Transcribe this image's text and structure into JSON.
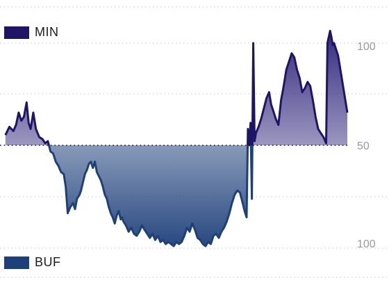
{
  "chart_data": {
    "type": "area",
    "y_scale": "two-sided (value above baseline 50 rises toward top-label 100; value below baseline 50 falls toward bottom-label 100)",
    "y_tick_labels": [
      "100",
      "50",
      "100"
    ],
    "baseline_label": "50",
    "grid": true,
    "legend_placement": "top-left and bottom-left",
    "series": [
      {
        "name": "MIN",
        "color": "#1e1565",
        "region": "above baseline"
      },
      {
        "name": "BUF",
        "color": "#1d3f7a",
        "region": "below baseline"
      }
    ],
    "x": [
      0,
      1,
      2,
      3,
      4,
      5,
      6,
      7,
      8,
      9,
      10,
      11,
      12,
      13,
      14,
      15,
      16,
      17,
      18,
      19,
      20,
      21,
      22,
      23,
      24,
      25,
      26,
      27,
      28,
      29,
      30,
      31,
      32,
      33,
      34,
      35,
      36,
      37,
      38,
      39,
      40,
      41,
      42,
      43,
      44,
      45,
      46,
      47,
      48,
      49,
      50,
      51,
      52,
      53,
      54,
      55,
      56,
      57,
      58,
      59,
      60,
      61,
      62,
      63,
      64,
      65,
      66,
      67,
      68,
      69,
      70,
      71,
      72,
      73,
      74,
      75,
      76,
      77,
      78,
      79,
      80,
      81,
      82,
      83,
      84,
      85,
      86,
      87,
      88,
      89,
      90,
      91,
      92,
      93,
      94,
      95,
      96,
      97,
      98,
      99,
      100,
      101,
      102,
      103,
      104,
      105,
      106,
      107,
      108,
      109,
      110,
      111,
      112,
      113,
      114,
      115,
      116,
      117,
      118,
      119,
      120,
      121,
      122,
      123,
      124,
      125,
      126,
      127,
      128,
      129,
      130,
      131,
      132,
      133,
      134,
      135,
      136,
      137,
      138,
      139,
      140,
      141,
      142,
      143,
      144,
      145,
      146,
      147,
      148,
      149,
      150,
      151,
      152,
      153,
      154,
      155,
      156,
      157,
      158,
      159,
      160,
      161,
      162,
      163,
      164,
      165,
      166,
      167,
      168,
      169,
      170,
      171,
      172,
      173,
      174,
      175,
      176,
      177,
      178,
      179,
      180,
      181,
      182,
      183,
      184,
      185,
      186,
      187,
      188,
      189,
      190,
      191,
      192,
      193,
      194,
      195,
      196,
      197,
      198,
      199,
      200,
      201,
      202,
      203,
      204,
      205,
      206,
      207,
      208,
      209,
      210,
      211,
      212,
      213,
      214,
      215,
      216,
      217,
      218,
      219,
      220,
      221,
      222,
      223,
      224,
      225,
      226,
      227,
      228,
      229,
      230,
      231,
      232,
      233,
      234,
      235,
      236,
      237,
      238,
      239,
      240,
      241,
      242,
      243,
      244,
      245,
      246,
      247,
      248,
      249,
      250,
      251,
      252,
      253,
      254,
      255,
      256,
      257,
      258,
      259,
      260,
      261,
      262,
      263,
      264,
      265,
      266,
      267,
      268,
      269,
      270,
      271,
      272,
      273,
      274,
      275,
      276,
      277,
      278,
      279,
      280,
      281,
      282,
      283,
      284,
      285,
      286,
      287,
      288,
      289,
      290,
      291,
      292,
      293,
      294,
      295,
      296,
      297,
      298,
      299,
      300,
      301,
      302,
      303,
      304,
      305,
      306,
      307,
      308,
      309,
      310,
      311,
      312,
      313,
      314,
      315,
      316,
      317,
      318,
      319,
      320,
      321,
      322,
      323,
      324,
      325,
      326,
      327,
      328,
      329,
      330,
      331,
      332,
      333,
      334,
      335,
      336,
      337,
      338,
      339,
      340,
      341,
      342,
      343,
      344,
      345,
      346,
      347,
      348,
      349,
      350,
      351,
      352,
      353,
      354,
      355,
      356,
      357,
      358,
      359,
      360,
      361,
      362,
      363,
      364,
      365,
      366,
      367,
      368,
      369,
      370,
      371,
      372,
      373,
      374,
      375,
      376,
      377,
      378,
      379,
      380,
      381,
      382,
      383,
      384,
      385,
      386,
      387,
      388,
      389,
      390,
      391,
      392,
      393,
      394,
      395,
      396,
      397,
      398,
      399,
      400,
      401,
      402,
      403,
      404,
      405,
      406,
      407,
      408,
      409,
      410,
      411,
      412,
      413,
      414,
      415,
      416,
      417,
      418,
      419,
      420,
      421,
      422,
      423,
      424,
      425,
      426,
      427,
      428,
      429,
      430,
      431,
      432,
      433,
      434,
      435,
      436,
      437,
      438,
      439,
      440,
      441,
      442,
      443,
      444,
      445,
      446,
      447,
      448,
      449,
      450,
      451,
      452,
      453,
      454,
      455,
      456,
      457,
      458,
      459,
      460,
      461,
      462,
      463,
      464,
      465,
      466,
      467,
      468,
      469,
      470,
      471,
      472,
      473,
      474,
      475,
      476,
      477,
      478,
      479,
      480,
      481,
      482,
      483,
      484,
      485,
      486,
      487,
      488,
      489,
      490,
      491,
      492,
      493,
      494,
      495,
      496,
      497,
      498,
      499,
      500,
      501,
      502,
      503,
      504,
      505,
      506,
      507,
      508,
      509,
      510,
      511,
      512,
      513,
      514,
      515,
      516,
      517,
      518,
      519,
      520
    ],
    "values": [
      [
        4,
        55
      ],
      [
        10,
        59
      ],
      [
        16,
        57
      ],
      [
        20,
        60
      ],
      [
        24,
        66
      ],
      [
        28,
        62
      ],
      [
        32,
        64
      ],
      [
        36,
        71
      ],
      [
        39,
        61
      ],
      [
        42,
        58
      ],
      [
        46,
        66
      ],
      [
        50,
        58
      ],
      [
        55,
        54
      ],
      [
        60,
        53
      ],
      [
        64,
        51
      ],
      [
        68,
        52
      ],
      [
        72,
        47
      ],
      [
        76,
        46
      ],
      [
        80,
        42
      ],
      [
        84,
        40
      ],
      [
        88,
        37
      ],
      [
        92,
        36
      ],
      [
        95,
        30
      ],
      [
        98,
        17
      ],
      [
        102,
        20
      ],
      [
        106,
        22
      ],
      [
        109,
        19
      ],
      [
        112,
        24
      ],
      [
        116,
        26
      ],
      [
        118,
        28
      ],
      [
        121,
        32
      ],
      [
        124,
        36
      ],
      [
        127,
        38
      ],
      [
        130,
        41
      ],
      [
        133,
        42
      ],
      [
        136,
        39
      ],
      [
        139,
        42
      ],
      [
        142,
        37
      ],
      [
        145,
        35
      ],
      [
        148,
        33
      ],
      [
        151,
        30
      ],
      [
        154,
        26
      ],
      [
        157,
        24
      ],
      [
        160,
        20
      ],
      [
        163,
        17
      ],
      [
        166,
        15
      ],
      [
        169,
        12
      ],
      [
        172,
        16
      ],
      [
        175,
        18
      ],
      [
        178,
        14
      ],
      [
        180,
        15
      ],
      [
        182,
        13
      ],
      [
        186,
        11
      ],
      [
        190,
        8
      ],
      [
        194,
        10
      ],
      [
        198,
        7
      ],
      [
        202,
        6
      ],
      [
        206,
        8
      ],
      [
        210,
        11
      ],
      [
        214,
        9
      ],
      [
        218,
        7
      ],
      [
        222,
        5
      ],
      [
        226,
        7
      ],
      [
        230,
        4
      ],
      [
        234,
        6
      ],
      [
        238,
        3
      ],
      [
        242,
        4
      ],
      [
        246,
        2
      ],
      [
        250,
        3
      ],
      [
        254,
        2
      ],
      [
        258,
        1
      ],
      [
        262,
        3
      ],
      [
        266,
        2
      ],
      [
        270,
        3
      ],
      [
        274,
        6
      ],
      [
        278,
        10
      ],
      [
        282,
        8
      ],
      [
        286,
        12
      ],
      [
        290,
        9
      ],
      [
        294,
        5
      ],
      [
        298,
        4
      ],
      [
        302,
        2
      ],
      [
        306,
        1
      ],
      [
        310,
        3
      ],
      [
        314,
        2
      ],
      [
        318,
        6
      ],
      [
        322,
        7
      ],
      [
        326,
        5
      ],
      [
        330,
        8
      ],
      [
        334,
        10
      ],
      [
        338,
        13
      ],
      [
        342,
        17
      ],
      [
        346,
        22
      ],
      [
        350,
        26
      ],
      [
        354,
        28
      ],
      [
        358,
        27
      ],
      [
        362,
        22
      ],
      [
        365,
        18
      ],
      [
        368,
        15
      ],
      [
        370,
        58
      ],
      [
        372,
        50
      ],
      [
        374,
        61
      ],
      [
        376,
        24
      ],
      [
        378,
        100
      ],
      [
        380,
        52
      ],
      [
        382,
        56
      ],
      [
        386,
        59
      ],
      [
        390,
        63
      ],
      [
        394,
        68
      ],
      [
        398,
        73
      ],
      [
        402,
        76
      ],
      [
        405,
        70
      ],
      [
        408,
        67
      ],
      [
        412,
        63
      ],
      [
        416,
        60
      ],
      [
        418,
        66
      ],
      [
        420,
        72
      ],
      [
        424,
        79
      ],
      [
        428,
        87
      ],
      [
        432,
        91
      ],
      [
        436,
        95
      ],
      [
        440,
        93
      ],
      [
        444,
        87
      ],
      [
        448,
        83
      ],
      [
        452,
        76
      ],
      [
        456,
        78
      ],
      [
        460,
        81
      ],
      [
        464,
        79
      ],
      [
        468,
        72
      ],
      [
        472,
        64
      ],
      [
        476,
        58
      ],
      [
        480,
        56
      ],
      [
        484,
        54
      ],
      [
        488,
        51
      ],
      [
        490,
        100
      ],
      [
        494,
        106
      ],
      [
        496,
        103
      ],
      [
        498,
        99
      ],
      [
        500,
        100
      ],
      [
        502,
        98
      ],
      [
        504,
        96
      ],
      [
        506,
        94
      ],
      [
        508,
        90
      ],
      [
        510,
        86
      ],
      [
        512,
        82
      ],
      [
        514,
        78
      ],
      [
        516,
        74
      ],
      [
        518,
        70
      ],
      [
        520,
        66
      ]
    ]
  },
  "legend": {
    "items": [
      {
        "label": "MIN",
        "color": "#1e1565"
      },
      {
        "label": "BUF",
        "color": "#1d3f7a"
      }
    ]
  },
  "axis": {
    "ticks": [
      "100",
      "50",
      "100"
    ]
  }
}
